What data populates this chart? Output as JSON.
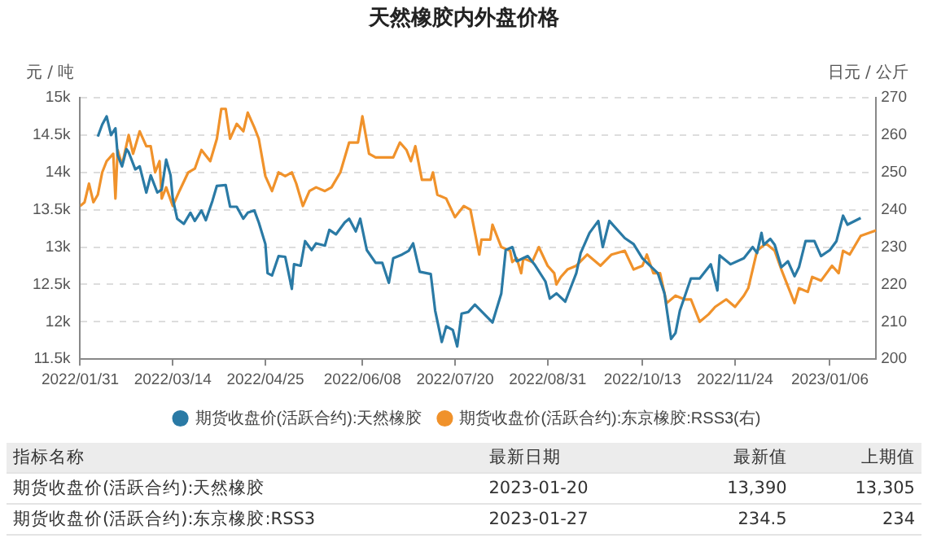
{
  "chart_data": {
    "type": "line",
    "title": "天然橡胶内外盘价格",
    "ylabel": "元 / 吨",
    "y2label": "日元 / 公斤",
    "xlim": [
      "2022-01-31",
      "2023-01-27"
    ],
    "xticks": [
      {
        "value": "2022-01-31",
        "label": "2022/01/31"
      },
      {
        "value": "2022-03-14",
        "label": "2022/03/14"
      },
      {
        "value": "2022-04-25",
        "label": "2022/04/25"
      },
      {
        "value": "2022-06-08",
        "label": "2022/06/08"
      },
      {
        "value": "2022-07-20",
        "label": "2022/07/20"
      },
      {
        "value": "2022-08-31",
        "label": "2022/08/31"
      },
      {
        "value": "2022-10-13",
        "label": "2022/10/13"
      },
      {
        "value": "2022-11-24",
        "label": "2022/11/24"
      },
      {
        "value": "2023-01-06",
        "label": "2023/01/06"
      }
    ],
    "ylim": [
      11500,
      15000
    ],
    "yticks": [
      {
        "value": 11500,
        "label": "11.5k"
      },
      {
        "value": 12000,
        "label": "12k"
      },
      {
        "value": 12500,
        "label": "12.5k"
      },
      {
        "value": 13000,
        "label": "13k"
      },
      {
        "value": 13500,
        "label": "13.5k"
      },
      {
        "value": 14000,
        "label": "14k"
      },
      {
        "value": 14500,
        "label": "14.5k"
      },
      {
        "value": 15000,
        "label": "15k"
      }
    ],
    "y2lim": [
      200,
      270
    ],
    "y2ticks": [
      200,
      210,
      220,
      230,
      240,
      250,
      260,
      270
    ],
    "grid": "y",
    "legend": "bottom",
    "marker": "none",
    "line_style": "solid",
    "annotations": [
      "指标名称",
      "最新日期",
      "最新值",
      "上期值",
      "期货收盘价(活跃合约):天然橡胶",
      "2023-01-20",
      "13,390",
      "13,305",
      "期货收盘价(活跃合约):东京橡胶:RSS3",
      "2023-01-27",
      "234.5",
      "234"
    ],
    "series": [
      {
        "name": "期货收盘价(活跃合约):天然橡胶",
        "color": "#2a7aa5",
        "x": [
          "2022-02-08",
          "2022-02-10",
          "2022-02-12",
          "2022-02-14",
          "2022-02-16",
          "2022-02-17",
          "2022-02-19",
          "2022-02-21",
          "2022-02-22",
          "2022-02-25",
          "2022-02-27",
          "2022-03-02",
          "2022-03-04",
          "2022-03-07",
          "2022-03-09",
          "2022-03-11",
          "2022-03-13",
          "2022-03-14",
          "2022-03-16",
          "2022-03-19",
          "2022-03-22",
          "2022-03-24",
          "2022-03-27",
          "2022-03-29",
          "2022-04-01",
          "2022-04-03",
          "2022-04-07",
          "2022-04-09",
          "2022-04-12",
          "2022-04-15",
          "2022-04-17",
          "2022-04-20",
          "2022-04-22",
          "2022-04-25",
          "2022-04-26",
          "2022-04-28",
          "2022-05-01",
          "2022-05-04",
          "2022-05-07",
          "2022-05-08",
          "2022-05-11",
          "2022-05-13",
          "2022-05-16",
          "2022-05-18",
          "2022-05-22",
          "2022-05-24",
          "2022-05-27",
          "2022-05-31",
          "2022-06-02",
          "2022-06-05",
          "2022-06-07",
          "2022-06-10",
          "2022-06-14",
          "2022-06-17",
          "2022-06-20",
          "2022-06-22",
          "2022-06-26",
          "2022-06-29",
          "2022-07-01",
          "2022-07-04",
          "2022-07-09",
          "2022-07-11",
          "2022-07-14",
          "2022-07-16",
          "2022-07-19",
          "2022-07-21",
          "2022-07-23",
          "2022-07-26",
          "2022-07-29",
          "2022-08-03",
          "2022-08-06",
          "2022-08-10",
          "2022-08-12",
          "2022-08-15",
          "2022-08-17",
          "2022-08-22",
          "2022-08-25",
          "2022-08-30",
          "2022-09-01",
          "2022-09-04",
          "2022-09-08",
          "2022-09-13",
          "2022-09-15",
          "2022-09-19",
          "2022-09-23",
          "2022-09-25",
          "2022-09-28",
          "2022-10-05",
          "2022-10-09",
          "2022-10-13",
          "2022-10-20",
          "2022-10-23",
          "2022-10-26",
          "2022-10-28",
          "2022-10-30",
          "2022-11-04",
          "2022-11-08",
          "2022-11-13",
          "2022-11-16",
          "2022-11-17",
          "2022-11-22",
          "2022-11-28",
          "2022-12-02",
          "2022-12-04",
          "2022-12-06",
          "2022-12-07",
          "2022-12-10",
          "2022-12-12",
          "2022-12-15",
          "2022-12-18",
          "2022-12-21",
          "2022-12-23",
          "2022-12-26",
          "2022-12-30",
          "2023-01-02",
          "2023-01-06",
          "2023-01-09",
          "2023-01-12",
          "2023-01-14",
          "2023-01-20"
        ],
        "values": [
          14480,
          14640,
          14750,
          14500,
          14590,
          14230,
          14080,
          14310,
          14270,
          14040,
          14080,
          13730,
          13960,
          13730,
          13770,
          14170,
          13960,
          13650,
          13380,
          13310,
          13460,
          13350,
          13490,
          13360,
          13620,
          13820,
          13830,
          13540,
          13540,
          13380,
          13460,
          13490,
          13330,
          13040,
          12650,
          12620,
          12880,
          12870,
          12440,
          12770,
          12750,
          13080,
          12960,
          13050,
          13020,
          13230,
          13170,
          13330,
          13380,
          13210,
          13380,
          12960,
          12790,
          12790,
          12520,
          12850,
          12900,
          12950,
          13050,
          12670,
          12640,
          12150,
          11730,
          11940,
          11890,
          11670,
          12110,
          12130,
          12230,
          12080,
          11990,
          12380,
          12960,
          13000,
          12810,
          12880,
          12770,
          12540,
          12310,
          12380,
          12270,
          12650,
          12920,
          13190,
          13350,
          13000,
          13350,
          13120,
          13040,
          12850,
          12650,
          12380,
          11770,
          11850,
          12150,
          12580,
          12580,
          12770,
          12420,
          12890,
          12770,
          12850,
          13000,
          12920,
          13190,
          13030,
          13110,
          13030,
          12730,
          12810,
          12610,
          12730,
          13080,
          13080,
          12880,
          12960,
          13080,
          13420,
          13300,
          13390
        ]
      },
      {
        "name": "期货收盘价(活跃合约):东京橡胶:RSS3(右)",
        "color": "#f0922b",
        "axis": "y2",
        "x": [
          "2022-01-31",
          "2022-02-02",
          "2022-02-04",
          "2022-02-06",
          "2022-02-08",
          "2022-02-10",
          "2022-02-12",
          "2022-02-15",
          "2022-02-16",
          "2022-02-17",
          "2022-02-19",
          "2022-02-22",
          "2022-02-24",
          "2022-02-27",
          "2022-03-02",
          "2022-03-04",
          "2022-03-06",
          "2022-03-08",
          "2022-03-09",
          "2022-03-11",
          "2022-03-14",
          "2022-03-17",
          "2022-03-21",
          "2022-03-24",
          "2022-03-27",
          "2022-03-31",
          "2022-04-03",
          "2022-04-05",
          "2022-04-07",
          "2022-04-09",
          "2022-04-12",
          "2022-04-15",
          "2022-04-17",
          "2022-04-20",
          "2022-04-22",
          "2022-04-25",
          "2022-04-28",
          "2022-05-01",
          "2022-05-04",
          "2022-05-07",
          "2022-05-09",
          "2022-05-12",
          "2022-05-15",
          "2022-05-18",
          "2022-05-22",
          "2022-05-25",
          "2022-05-29",
          "2022-06-02",
          "2022-06-06",
          "2022-06-08",
          "2022-06-11",
          "2022-06-14",
          "2022-06-19",
          "2022-06-22",
          "2022-06-25",
          "2022-06-28",
          "2022-06-30",
          "2022-07-02",
          "2022-07-05",
          "2022-07-09",
          "2022-07-10",
          "2022-07-12",
          "2022-07-16",
          "2022-07-20",
          "2022-07-24",
          "2022-07-27",
          "2022-07-31",
          "2022-08-01",
          "2022-08-05",
          "2022-08-06",
          "2022-08-10",
          "2022-08-14",
          "2022-08-15",
          "2022-08-17",
          "2022-08-19",
          "2022-08-20",
          "2022-08-24",
          "2022-08-27",
          "2022-08-31",
          "2022-09-03",
          "2022-09-04",
          "2022-09-06",
          "2022-09-09",
          "2022-09-13",
          "2022-09-18",
          "2022-09-24",
          "2022-09-29",
          "2022-10-05",
          "2022-10-09",
          "2022-10-13",
          "2022-10-15",
          "2022-10-18",
          "2022-10-21",
          "2022-10-24",
          "2022-10-28",
          "2022-11-01",
          "2022-11-04",
          "2022-11-08",
          "2022-11-12",
          "2022-11-15",
          "2022-11-20",
          "2022-11-24",
          "2022-11-28",
          "2022-11-30",
          "2022-12-04",
          "2022-12-08",
          "2022-12-12",
          "2022-12-15",
          "2022-12-19",
          "2022-12-21",
          "2022-12-23",
          "2022-12-27",
          "2022-12-29",
          "2023-01-02",
          "2023-01-07",
          "2023-01-10",
          "2023-01-12",
          "2023-01-15",
          "2023-01-17",
          "2023-01-20",
          "2023-01-27"
        ],
        "values": [
          241,
          242,
          247,
          242,
          244,
          250,
          253,
          255,
          243,
          256,
          252,
          260,
          255,
          261,
          257,
          257,
          250,
          253,
          243,
          246,
          241,
          245,
          250,
          251,
          256,
          253,
          259,
          267,
          267,
          259,
          263,
          261,
          266,
          262,
          259,
          249,
          245,
          250,
          249,
          250,
          247,
          241,
          245,
          246,
          245,
          246,
          250,
          258,
          258,
          265,
          255,
          254,
          254,
          254,
          258,
          256,
          253,
          257,
          248,
          248,
          250,
          244,
          243,
          238,
          241,
          240,
          228,
          232,
          232,
          236,
          230,
          229,
          226,
          227,
          223,
          227,
          226,
          230,
          225,
          223,
          220,
          222,
          224,
          225,
          228,
          225,
          228,
          229,
          224,
          225,
          228,
          223,
          223,
          215,
          217,
          216,
          216,
          210,
          212,
          214,
          216,
          214,
          217,
          219,
          229,
          231,
          229,
          224,
          218,
          215,
          219,
          218,
          222,
          221,
          225,
          223,
          229,
          228,
          230,
          233,
          234.5
        ]
      }
    ]
  }
}
